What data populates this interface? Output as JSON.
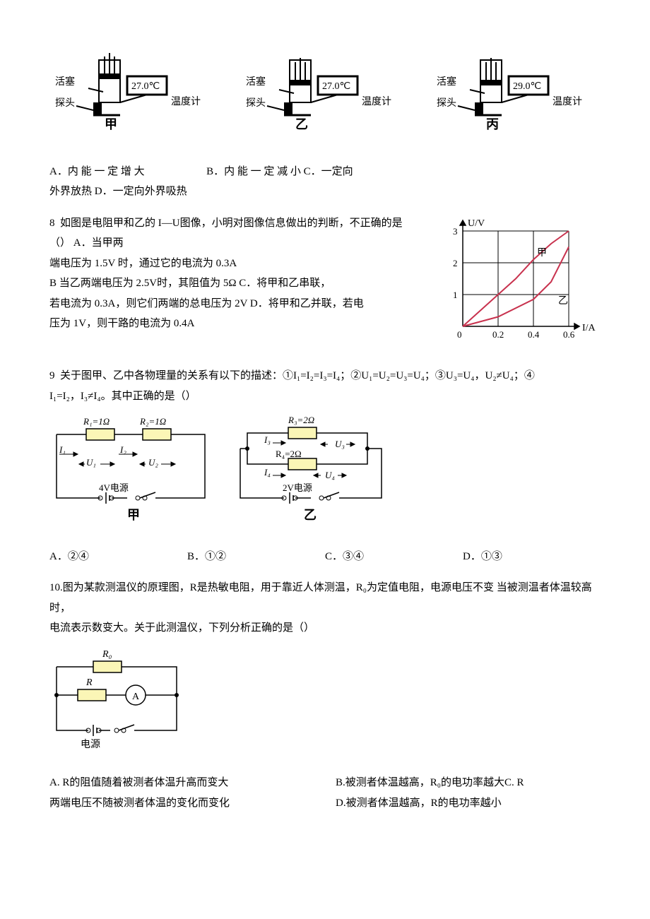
{
  "q7": {
    "figs": [
      {
        "label_piston": "活塞",
        "label_probe": "探头",
        "label_temp": "27.0℃",
        "label_therm": "温度计",
        "caption": "甲"
      },
      {
        "label_piston": "活塞",
        "label_probe": "探头",
        "label_temp": "27.0℃",
        "label_therm": "温度计",
        "caption": "乙"
      },
      {
        "label_piston": "活塞",
        "label_probe": "探头",
        "label_temp": "29.0℃",
        "label_therm": "温度计",
        "caption": "丙"
      }
    ],
    "lineA_pre": "A．内 能 一 定 增 大",
    "lineA_mid": "B．内 能 一 定 减 小",
    "lineA_suf": "C．一定向",
    "lineB": "外界放热 D．一定向外界吸热"
  },
  "q8": {
    "num": "8",
    "stem_1": "如图是电阻甲和乙的 I—U图像，小明对图像信息做出的判断，不正确的是（）  A．当甲两",
    "stem_2": "端电压为 1.5V 时，通过它的电流为 0.3A",
    "stem_3": "B  当乙两端电压为 2.5V时，其阻值为 5Ω C．将甲和乙串联，",
    "stem_4": "若电流为 0.3A，则它们两端的总电压为 2V D．将甲和乙并联，若电",
    "stem_5": "压为 1V，则干路的电流为 0.4A",
    "chart": {
      "type": "line",
      "x_label": "I/A",
      "y_label": "U/V",
      "xlim": [
        0,
        0.6
      ],
      "ylim": [
        0,
        3
      ],
      "xticks": [
        "0",
        "0.2",
        "0.4",
        "0.6"
      ],
      "yticks": [
        "0",
        "1",
        "2",
        "3"
      ],
      "grid_color": "#000000",
      "background_color": "#ffffff",
      "line_color": "#c8324e",
      "line_width": 2,
      "series": {
        "jia": {
          "label": "甲",
          "points": [
            [
              0,
              0
            ],
            [
              0.08,
              0.4
            ],
            [
              0.2,
              1
            ],
            [
              0.3,
              1.5
            ],
            [
              0.4,
              2.1
            ],
            [
              0.5,
              2.6
            ],
            [
              0.6,
              3
            ]
          ]
        },
        "yi": {
          "label": "乙",
          "points": [
            [
              0,
              0
            ],
            [
              0.2,
              0.3
            ],
            [
              0.4,
              0.85
            ],
            [
              0.5,
              1.4
            ],
            [
              0.6,
              2.5
            ]
          ]
        }
      }
    }
  },
  "q9": {
    "num": "9",
    "stem_1": "关于图甲、乙中各物理量的关系有以下的描述：①I₁=I₂=I₃=I₄；②U₁=U₂=U₃=U₄；③U₃=U₄，U₂≠U₄；④",
    "stem_2": "I₁=I₂，I₃≠I₄。其中正确的是（）",
    "circ_jia": {
      "R1": "R₁=1Ω",
      "R2": "R₂=1Ω",
      "I1": "I₁",
      "I2": "I₂",
      "U1": "U₁",
      "U2": "U₂",
      "src": "4V电源",
      "caption": "甲"
    },
    "circ_yi": {
      "R3": "R₃=2Ω",
      "R4": "R₄=2Ω",
      "I3": "I₃",
      "I4": "I₄",
      "U3": "U₃",
      "U4": "U₄",
      "src": "2V电源",
      "caption": "乙"
    },
    "opts": {
      "A": "A．②④",
      "B": "B．①②",
      "C": "C．③④",
      "D": "D．①③"
    }
  },
  "q10": {
    "num": "10.",
    "stem_1": "图为某款测温仪的原理图，R是热敏电阻，用于靠近人体测温，R₀为定值电阻，电源电压不变 当被测温者体温较高时，",
    "stem_2": "电流表示数变大。关于此测温仪，下列分析正确的是（）",
    "circ": {
      "R0": "R₀",
      "R": "R",
      "A": "A",
      "src": "电源"
    },
    "opts": {
      "A": "A. R的阻值随着被测者体温升高而变大",
      "B": "B.被测者体温越高，R₀的电功率越大",
      "C": "C. R",
      "C2": "两端电压不随被测者体温的变化而变化",
      "D": "D.被测者体温越高，R的电功率越小"
    }
  },
  "style": {
    "resistor_fill": "#fbf6b6",
    "resistor_stroke": "#000000",
    "wire_color": "#000000",
    "font_size_label": 14
  }
}
